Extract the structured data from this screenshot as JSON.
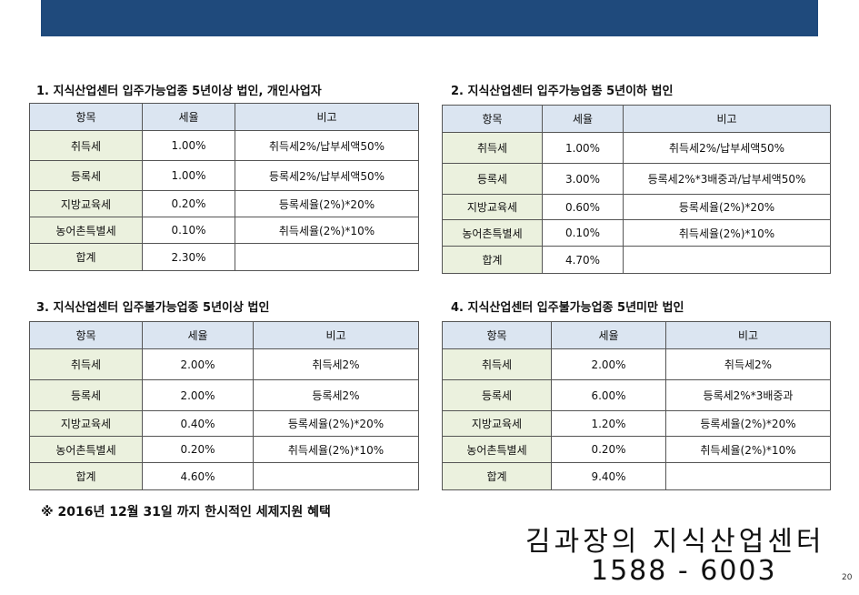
{
  "sections": [
    {
      "title": "1. 지식산업센터 입주가능업종 5년이상 법인, 개인사업자",
      "headers": [
        "항목",
        "세율",
        "비고"
      ],
      "rows": [
        [
          "취득세",
          "1.00%",
          "취득세2%/납부세액50%"
        ],
        [
          "등록세",
          "1.00%",
          "등록세2%/납부세액50%"
        ],
        [
          "지방교육세",
          "0.20%",
          "등록세율(2%)*20%"
        ],
        [
          "농어촌특별세",
          "0.10%",
          "취득세율(2%)*10%"
        ],
        [
          "합계",
          "2.30%",
          ""
        ]
      ]
    },
    {
      "title": "2. 지식산업센터 입주가능업종 5년이하 법인",
      "headers": [
        "항목",
        "세율",
        "비고"
      ],
      "rows": [
        [
          "취득세",
          "1.00%",
          "취득세2%/납부세액50%"
        ],
        [
          "등록세",
          "3.00%",
          "등록세2%*3배중과/납부세액50%"
        ],
        [
          "지방교육세",
          "0.60%",
          "등록세율(2%)*20%"
        ],
        [
          "농어촌특별세",
          "0.10%",
          "취득세율(2%)*10%"
        ],
        [
          "합계",
          "4.70%",
          ""
        ]
      ]
    },
    {
      "title": "3. 지식산업센터 입주불가능업종 5년이상 법인",
      "headers": [
        "항목",
        "세율",
        "비고"
      ],
      "rows": [
        [
          "취득세",
          "2.00%",
          "취득세2%"
        ],
        [
          "등록세",
          "2.00%",
          "등록세2%"
        ],
        [
          "지방교육세",
          "0.40%",
          "등록세율(2%)*20%"
        ],
        [
          "농어촌특별세",
          "0.20%",
          "취득세율(2%)*10%"
        ],
        [
          "합계",
          "4.60%",
          ""
        ]
      ]
    },
    {
      "title": "4. 지식산업센터 입주불가능업종 5년미만 법인",
      "headers": [
        "항목",
        "세율",
        "비고"
      ],
      "rows": [
        [
          "취득세",
          "2.00%",
          "취득세2%"
        ],
        [
          "등록세",
          "6.00%",
          "등록세2%*3배중과"
        ],
        [
          "지방교육세",
          "1.20%",
          "등록세율(2%)*20%"
        ],
        [
          "농어촌특별세",
          "0.20%",
          "취득세율(2%)*10%"
        ],
        [
          "합계",
          "9.40%",
          ""
        ]
      ]
    }
  ],
  "footnote": "※ 2016년 12월 31일 까지 한시적인 세제지원 혜택",
  "brand": "김과장의 지식산업센터",
  "phone": "1588 - 6003",
  "page_number": "20",
  "colors": {
    "banner": "#1f4a7c",
    "header_fill": "#dbe5f1",
    "item_fill": "#ebf1de"
  }
}
